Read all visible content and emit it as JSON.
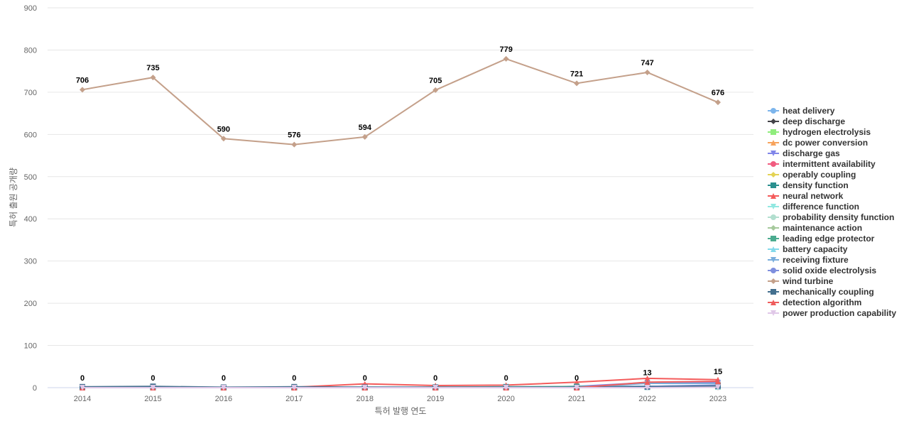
{
  "chart_data": {
    "type": "line",
    "title": "",
    "xlabel": "특허 발행 연도",
    "ylabel": "특허 출원 공개량",
    "ylim": [
      0,
      900
    ],
    "yticks": [
      0,
      100,
      200,
      300,
      400,
      500,
      600,
      700,
      800,
      900
    ],
    "grid": true,
    "legend_placement": "right",
    "x": [
      "2014",
      "2015",
      "2016",
      "2017",
      "2018",
      "2019",
      "2020",
      "2021",
      "2022",
      "2023"
    ],
    "series": [
      {
        "name": "heat delivery",
        "color": "#7cb5ec",
        "marker": "circle",
        "values": [
          1,
          2,
          0,
          1,
          1,
          1,
          1,
          2,
          3,
          4
        ]
      },
      {
        "name": "deep discharge",
        "color": "#434348",
        "marker": "diamond",
        "values": [
          0,
          1,
          0,
          0,
          0,
          1,
          0,
          1,
          2,
          3
        ]
      },
      {
        "name": "hydrogen electrolysis",
        "color": "#90ed7d",
        "marker": "square",
        "values": [
          0,
          0,
          0,
          0,
          1,
          0,
          1,
          1,
          2,
          2
        ]
      },
      {
        "name": "dc power conversion",
        "color": "#f7a35c",
        "marker": "triangle",
        "values": [
          0,
          0,
          0,
          0,
          0,
          1,
          0,
          1,
          1,
          2
        ]
      },
      {
        "name": "discharge gas",
        "color": "#8085e9",
        "marker": "triangle-down",
        "values": [
          0,
          0,
          0,
          0,
          0,
          0,
          0,
          3,
          12,
          12
        ]
      },
      {
        "name": "intermittent availability",
        "color": "#f15c80",
        "marker": "circle",
        "values": [
          0,
          0,
          0,
          0,
          0,
          0,
          0,
          0,
          1,
          1
        ]
      },
      {
        "name": "operably coupling",
        "color": "#e4d354",
        "marker": "diamond",
        "values": [
          0,
          0,
          0,
          0,
          0,
          0,
          0,
          0,
          1,
          1
        ]
      },
      {
        "name": "density function",
        "color": "#2b908f",
        "marker": "square",
        "values": [
          1,
          1,
          0,
          1,
          1,
          1,
          2,
          2,
          3,
          5
        ]
      },
      {
        "name": "neural network",
        "color": "#f45b5b",
        "marker": "triangle",
        "values": [
          1,
          2,
          0,
          1,
          9,
          5,
          6,
          13,
          22,
          19
        ]
      },
      {
        "name": "difference function",
        "color": "#91e8e1",
        "marker": "triangle-down",
        "values": [
          0,
          0,
          0,
          0,
          0,
          0,
          1,
          1,
          1,
          2
        ]
      },
      {
        "name": "probability density function",
        "color": "#b2dfcf",
        "marker": "circle",
        "values": [
          0,
          0,
          0,
          0,
          0,
          0,
          0,
          1,
          1,
          1
        ]
      },
      {
        "name": "maintenance action",
        "color": "#a6c99c",
        "marker": "diamond",
        "values": [
          0,
          0,
          0,
          0,
          0,
          1,
          1,
          2,
          2,
          3
        ]
      },
      {
        "name": "leading edge protector",
        "color": "#4bab8f",
        "marker": "square",
        "values": [
          0,
          0,
          0,
          0,
          0,
          0,
          1,
          3,
          3,
          4
        ]
      },
      {
        "name": "battery capacity",
        "color": "#83d9ea",
        "marker": "triangle",
        "values": [
          0,
          0,
          0,
          0,
          0,
          0,
          0,
          1,
          1,
          2
        ]
      },
      {
        "name": "receiving fixture",
        "color": "#7aaedc",
        "marker": "triangle-down",
        "values": [
          0,
          0,
          0,
          0,
          0,
          0,
          0,
          1,
          10,
          10
        ]
      },
      {
        "name": "solid oxide electrolysis",
        "color": "#7f8fde",
        "marker": "circle",
        "values": [
          0,
          0,
          0,
          0,
          0,
          0,
          0,
          1,
          3,
          6
        ]
      },
      {
        "name": "wind turbine",
        "color": "#c4a08a",
        "marker": "diamond",
        "values": [
          706,
          735,
          590,
          576,
          594,
          705,
          779,
          721,
          747,
          676
        ],
        "labels": true
      },
      {
        "name": "mechanically coupling",
        "color": "#44708f",
        "marker": "square",
        "values": [
          2,
          3,
          1,
          2,
          1,
          1,
          1,
          1,
          2,
          4
        ]
      },
      {
        "name": "detection algorithm",
        "color": "#ef5c5c",
        "marker": "triangle",
        "values": [
          0,
          0,
          0,
          0,
          0,
          0,
          0,
          0,
          13,
          15
        ],
        "labels": true
      },
      {
        "name": "power production capability",
        "color": "#e0c8e8",
        "marker": "triangle-down",
        "values": [
          0,
          0,
          0,
          0,
          0,
          0,
          0,
          0,
          0,
          1
        ]
      }
    ]
  }
}
